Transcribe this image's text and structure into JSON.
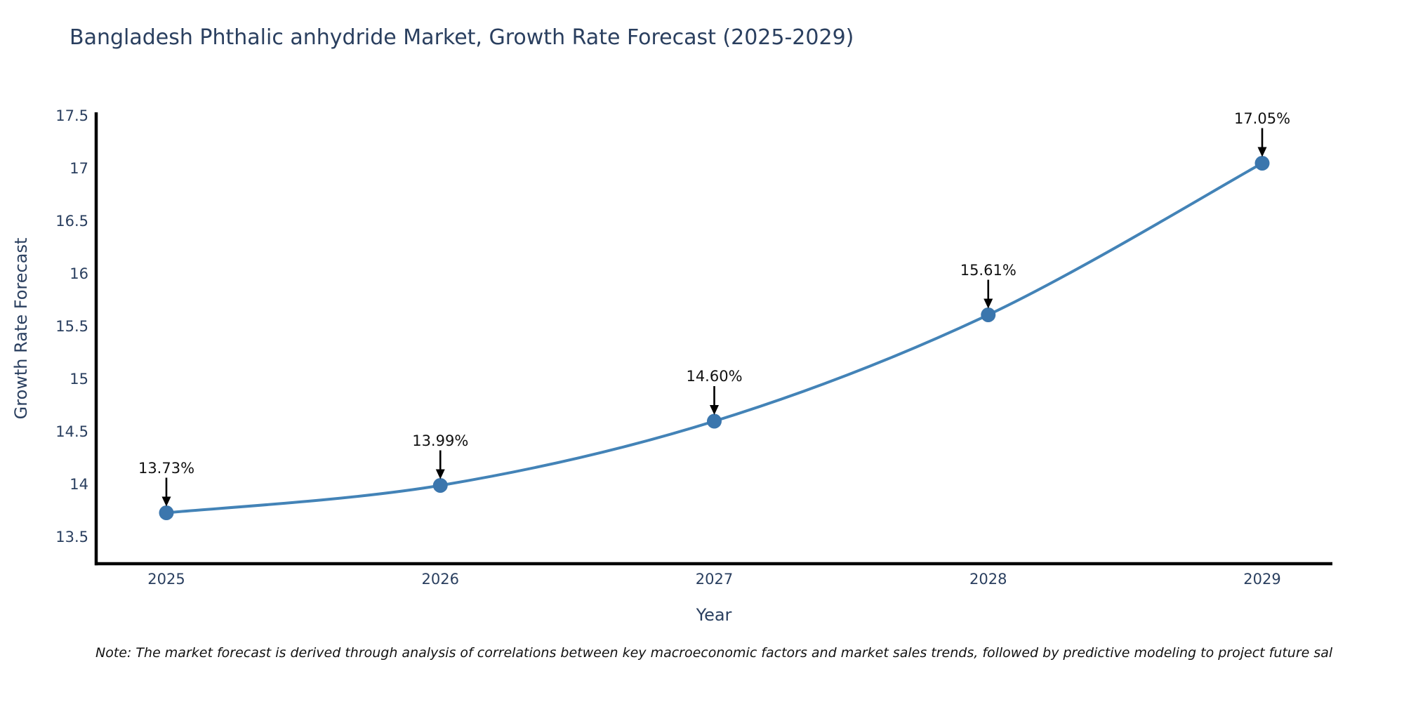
{
  "chart": {
    "title": "Bangladesh Phthalic anhydride Market, Growth Rate Forecast (2025-2029)",
    "note": "Note: The market forecast is derived through analysis of correlations between key macroeconomic factors and market sales trends, followed by predictive modeling to project future sal"
  },
  "chart_data": {
    "type": "line",
    "title": "Bangladesh Phthalic anhydride Market, Growth Rate Forecast (2025-2029)",
    "xlabel": "Year",
    "ylabel": "Growth Rate Forecast",
    "categories": [
      "2025",
      "2026",
      "2027",
      "2028",
      "2029"
    ],
    "series": [
      {
        "name": "Growth Rate Forecast",
        "values": [
          13.73,
          13.99,
          14.6,
          15.61,
          17.05
        ]
      }
    ],
    "point_labels": [
      "13.73%",
      "13.99%",
      "14.60%",
      "15.61%",
      "17.05%"
    ],
    "ylim": [
      13.5,
      17.5
    ],
    "yticks": [
      "17.5",
      "17",
      "16.5",
      "16",
      "15.5",
      "15",
      "14.5",
      "14",
      "13.5"
    ],
    "grid": false,
    "legend": "none",
    "line_shape": "spline",
    "annotations": "value labels with down arrows above each point",
    "colors": {
      "line": "#4383b7",
      "marker": "#3b76ad",
      "axis": "#000000",
      "text": "#2a3f5f",
      "annotation": "#111111",
      "background": "#ffffff"
    }
  }
}
